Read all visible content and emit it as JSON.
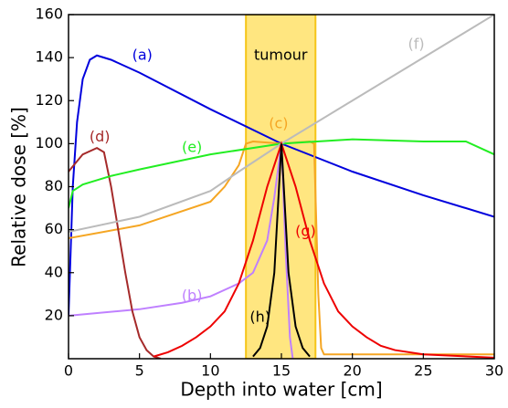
{
  "chart_data": {
    "type": "line",
    "xlabel": "Depth into water [cm]",
    "ylabel": "Relative dose [%]",
    "xlim": [
      0,
      30
    ],
    "ylim": [
      0,
      160
    ],
    "xticks": [
      0,
      5,
      10,
      15,
      20,
      25,
      30
    ],
    "yticks": [
      20,
      40,
      60,
      80,
      100,
      120,
      140,
      160
    ],
    "band": {
      "label": "tumour",
      "xrange": [
        12.5,
        17.4
      ],
      "color": "#ffe680",
      "edge": "#f5c518"
    },
    "series": [
      {
        "name": "(a)",
        "color": "#0000dd",
        "x": [
          0,
          0.3,
          0.6,
          1,
          1.5,
          2,
          3,
          5,
          10,
          15,
          20,
          25,
          30
        ],
        "values": [
          20,
          80,
          110,
          130,
          139,
          141,
          139,
          133,
          116,
          100,
          87,
          76,
          66
        ]
      },
      {
        "name": "(b)",
        "color": "#bf80ff",
        "x": [
          0,
          5,
          8,
          10,
          12,
          13,
          14,
          14.5,
          15,
          15.3,
          15.6,
          15.8
        ],
        "values": [
          20,
          23,
          26,
          29,
          35,
          40,
          55,
          75,
          100,
          50,
          10,
          0
        ]
      },
      {
        "name": "(c)",
        "color": "#f5a623",
        "x": [
          0,
          5,
          10,
          11,
          12,
          12.5,
          13,
          15,
          17,
          17.3,
          17.6,
          17.8,
          18,
          30
        ],
        "values": [
          56,
          62,
          73,
          80,
          90,
          100,
          101,
          100,
          101,
          100,
          30,
          5,
          2,
          2
        ]
      },
      {
        "name": "(d)",
        "color": "#a52a2a",
        "x": [
          0,
          1,
          2,
          2.5,
          3,
          3.5,
          4,
          4.5,
          5,
          5.5,
          6,
          6.5
        ],
        "values": [
          87,
          95,
          98,
          96,
          80,
          60,
          40,
          22,
          10,
          4,
          1,
          0
        ]
      },
      {
        "name": "(e)",
        "color": "#22ee22",
        "x": [
          0,
          0.3,
          1,
          3,
          5,
          10,
          15,
          20,
          25,
          28,
          30
        ],
        "values": [
          70,
          78,
          81,
          85,
          88,
          95,
          100,
          102,
          101,
          101,
          95
        ]
      },
      {
        "name": "(f)",
        "color": "#bbbbbb",
        "x": [
          0,
          5,
          10,
          12,
          15,
          20,
          25,
          30
        ],
        "values": [
          59,
          66,
          78,
          87,
          100,
          120,
          140,
          160
        ]
      },
      {
        "name": "(g)",
        "color": "#ee0000",
        "x": [
          6,
          7,
          8,
          9,
          10,
          11,
          12,
          13,
          14,
          15,
          16,
          17,
          18,
          19,
          20,
          21,
          22,
          23,
          25,
          30
        ],
        "values": [
          1,
          3,
          6,
          10,
          15,
          22,
          35,
          55,
          80,
          100,
          80,
          55,
          35,
          22,
          15,
          10,
          6,
          4,
          2,
          0.5
        ]
      },
      {
        "name": "(h)",
        "color": "#000000",
        "x": [
          13,
          13.5,
          14,
          14.5,
          15,
          15.5,
          16,
          16.5,
          17
        ],
        "values": [
          1,
          5,
          15,
          40,
          100,
          40,
          15,
          5,
          1
        ]
      }
    ]
  }
}
